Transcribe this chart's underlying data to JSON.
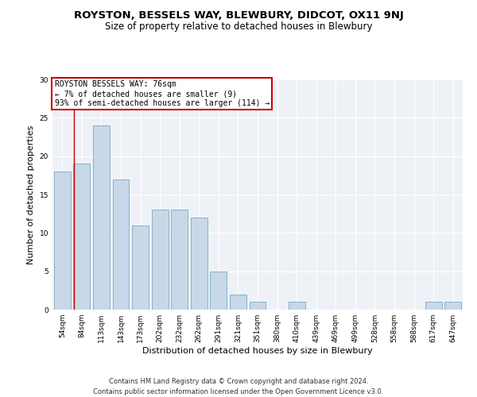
{
  "title": "ROYSTON, BESSELS WAY, BLEWBURY, DIDCOT, OX11 9NJ",
  "subtitle": "Size of property relative to detached houses in Blewbury",
  "xlabel": "Distribution of detached houses by size in Blewbury",
  "ylabel": "Number of detached properties",
  "categories": [
    "54sqm",
    "84sqm",
    "113sqm",
    "143sqm",
    "173sqm",
    "202sqm",
    "232sqm",
    "262sqm",
    "291sqm",
    "321sqm",
    "351sqm",
    "380sqm",
    "410sqm",
    "439sqm",
    "469sqm",
    "499sqm",
    "528sqm",
    "558sqm",
    "588sqm",
    "617sqm",
    "647sqm"
  ],
  "values": [
    18,
    19,
    24,
    17,
    11,
    13,
    13,
    12,
    5,
    2,
    1,
    0,
    1,
    0,
    0,
    0,
    0,
    0,
    0,
    1,
    1
  ],
  "bar_color": "#c8d8e8",
  "bar_edge_color": "#7aaabf",
  "annotation_box_text": "ROYSTON BESSELS WAY: 76sqm\n← 7% of detached houses are smaller (9)\n93% of semi-detached houses are larger (114) →",
  "annotation_box_color": "#ffffff",
  "annotation_box_edge_color": "#cc0000",
  "marker_line_color": "#cc0000",
  "ylim": [
    0,
    30
  ],
  "yticks": [
    0,
    5,
    10,
    15,
    20,
    25,
    30
  ],
  "bg_color": "#eef2f7",
  "footer_line1": "Contains HM Land Registry data © Crown copyright and database right 2024.",
  "footer_line2": "Contains public sector information licensed under the Open Government Licence v3.0.",
  "title_fontsize": 9.5,
  "subtitle_fontsize": 8.5,
  "tick_fontsize": 6.5,
  "ylabel_fontsize": 8,
  "xlabel_fontsize": 8,
  "footer_fontsize": 6
}
